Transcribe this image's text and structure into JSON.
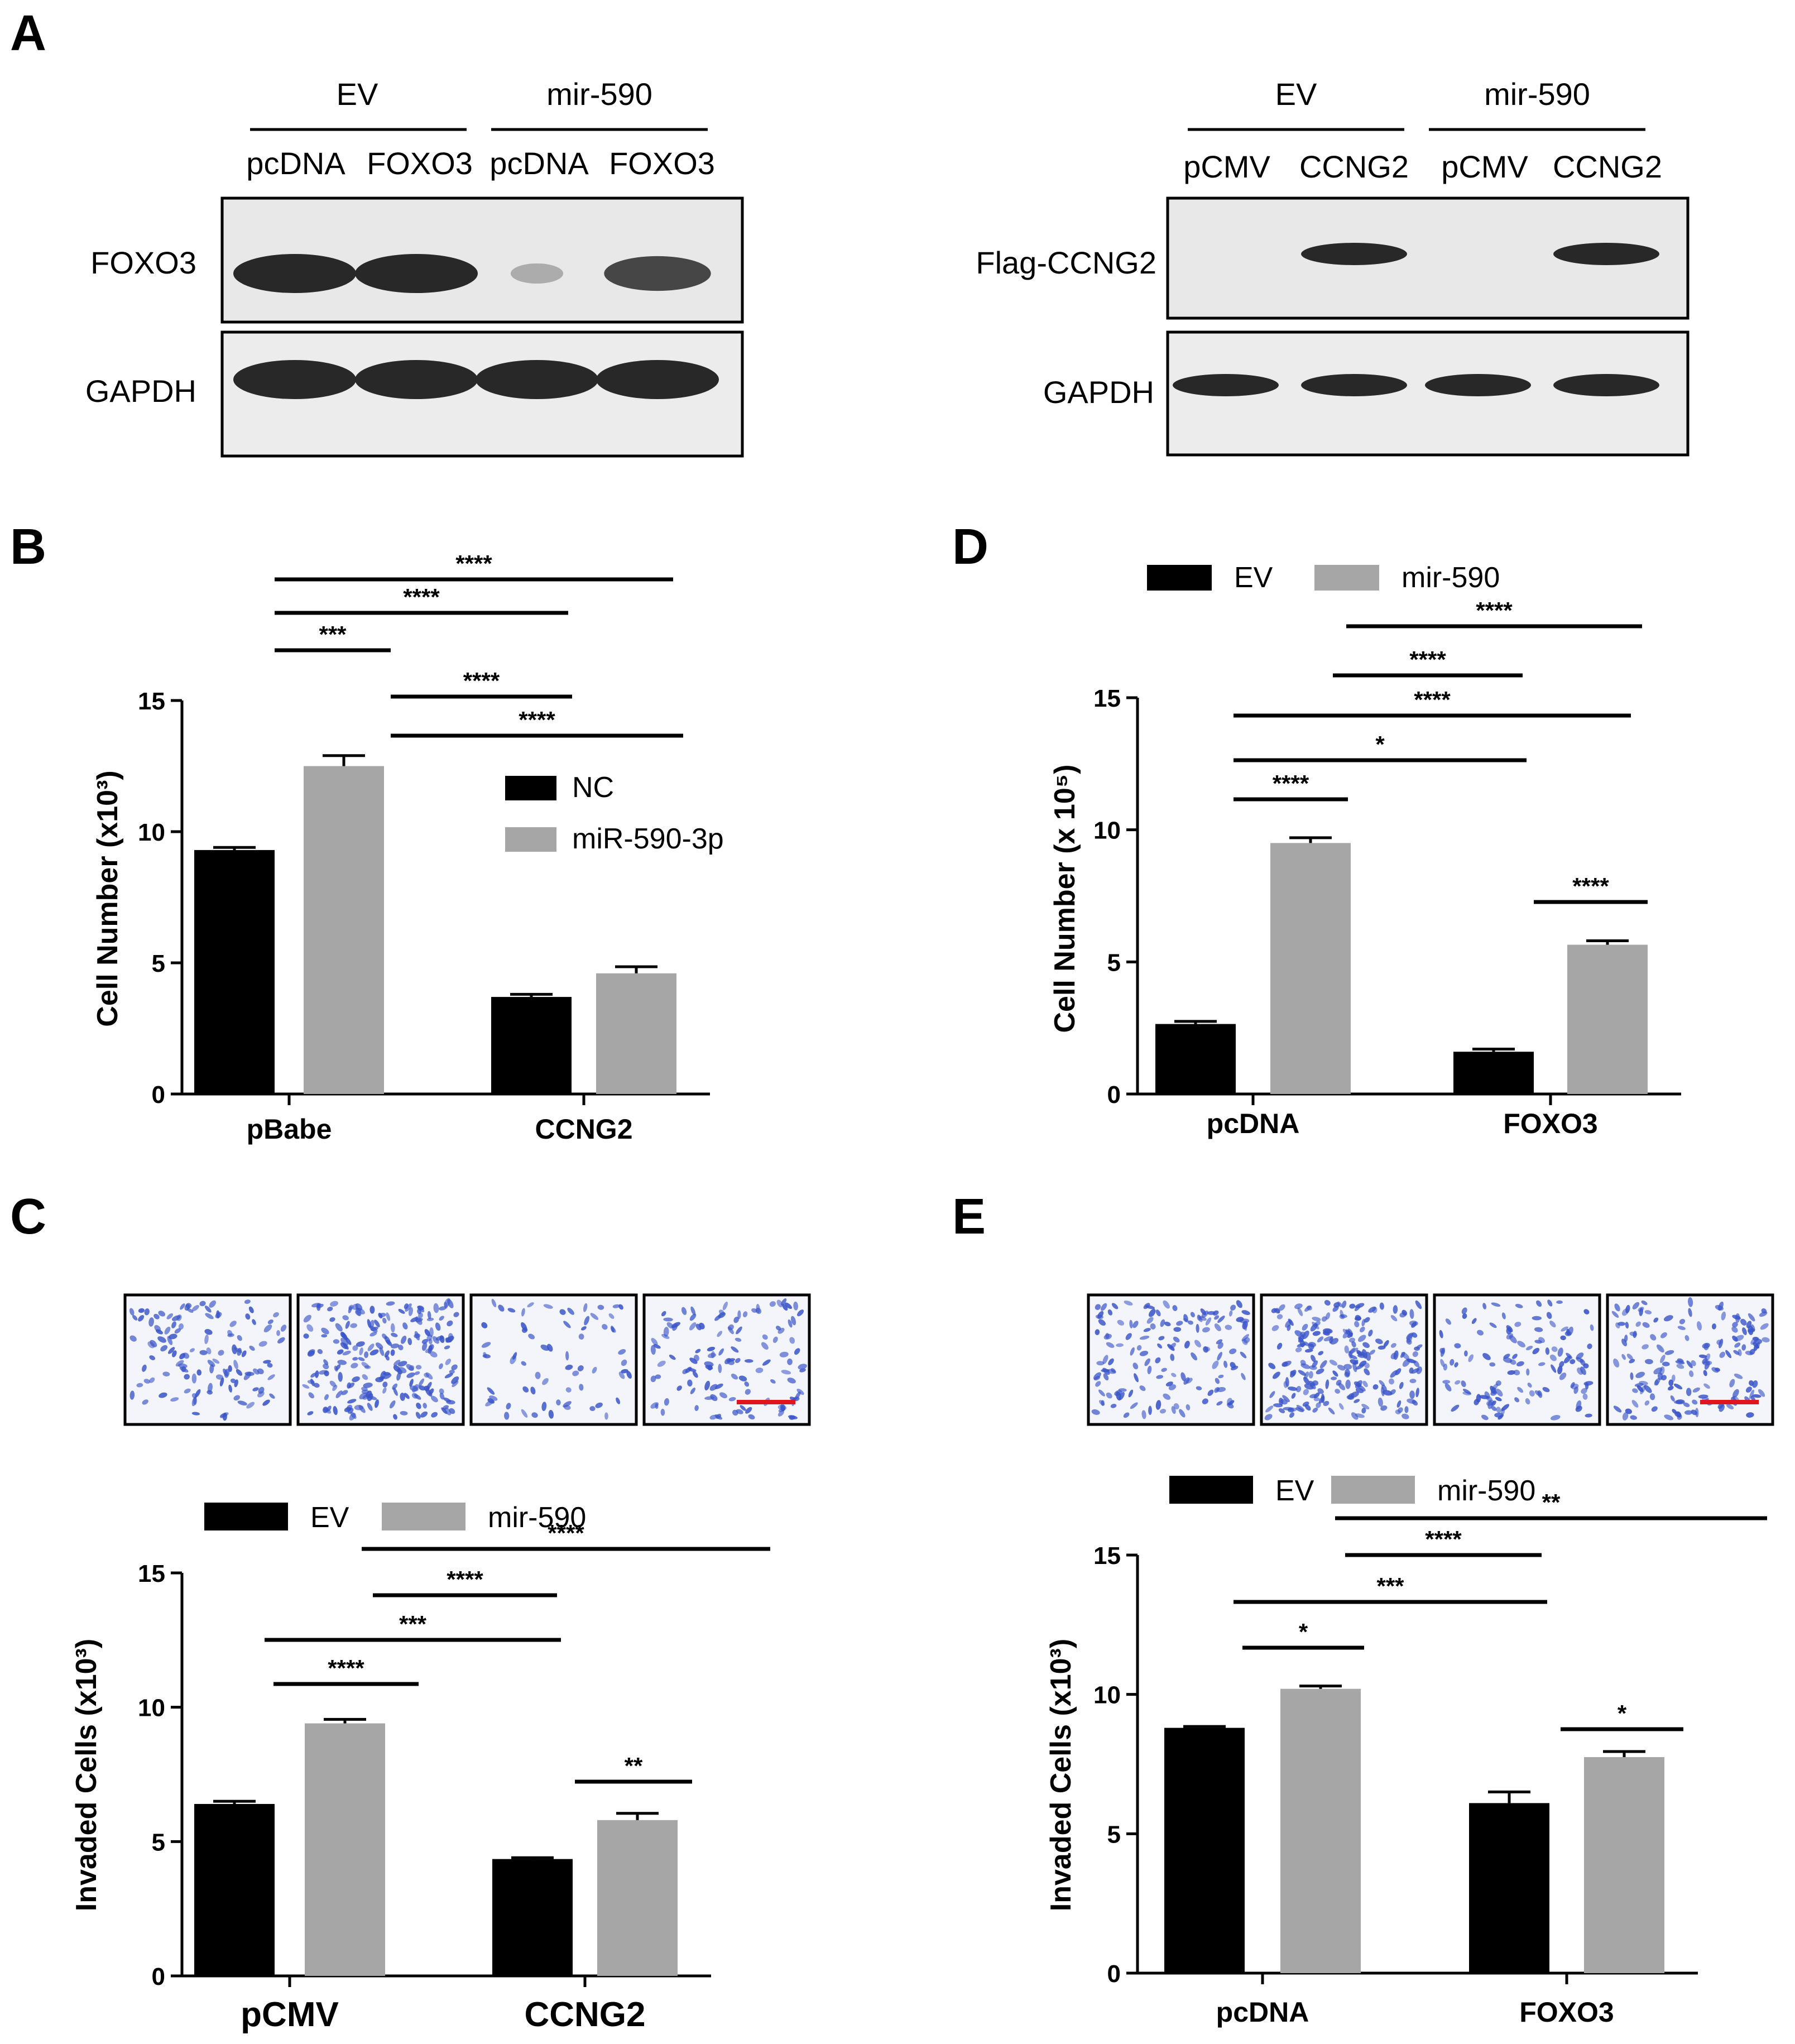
{
  "panel_labels": [
    "A",
    "B",
    "C",
    "D",
    "E"
  ],
  "blot_left": {
    "group_labels": [
      "EV",
      "mir-590"
    ],
    "lane_labels": [
      "pcDNA",
      "FOXO3",
      "pcDNA",
      "FOXO3"
    ],
    "rows": [
      {
        "label": "FOXO3",
        "band_intensity": [
          1.0,
          1.0,
          0.12,
          0.8
        ]
      },
      {
        "label": "GAPDH",
        "band_intensity": [
          1.0,
          1.0,
          1.0,
          1.0
        ]
      }
    ]
  },
  "blot_right": {
    "group_labels": [
      "EV",
      "mir-590"
    ],
    "lane_labels": [
      "pCMV",
      "CCNG2",
      "pCMV",
      "CCNG2"
    ],
    "rows": [
      {
        "label": "Flag-CCNG2",
        "band_intensity": [
          0.0,
          1.0,
          0.0,
          1.0
        ]
      },
      {
        "label": "GAPDH",
        "band_intensity": [
          1.0,
          1.0,
          1.0,
          1.0
        ]
      }
    ]
  },
  "colors": {
    "black_series": "#000000",
    "gray_series": "#a6a6a6",
    "stain": "#3a55c8",
    "scale_bar": "#e0161e"
  },
  "chart_data": [
    {
      "id": "B",
      "type": "bar",
      "ylabel": "Cell Number (x10³)",
      "ylim": [
        0,
        15
      ],
      "yticks": [
        0,
        5,
        10,
        15
      ],
      "categories": [
        "pBabe",
        "CCNG2"
      ],
      "series": [
        {
          "name": "NC",
          "values": [
            9.3,
            3.7
          ],
          "errors": [
            0.1,
            0.1
          ]
        },
        {
          "name": "miR-590-3p",
          "values": [
            12.5,
            4.6
          ],
          "errors": [
            0.4,
            0.25
          ]
        }
      ],
      "legend": {
        "placement": "right"
      },
      "significance": [
        {
          "label": "****",
          "from": [
            0,
            0
          ],
          "to": [
            1,
            1
          ]
        },
        {
          "label": "****",
          "from": [
            0,
            0
          ],
          "to": [
            1,
            0
          ]
        },
        {
          "label": "***",
          "from": [
            0,
            0
          ],
          "to": [
            0,
            1
          ]
        },
        {
          "label": "****",
          "from": [
            0,
            1
          ],
          "to": [
            1,
            0
          ]
        },
        {
          "label": "****",
          "from": [
            0,
            1
          ],
          "to": [
            1,
            1
          ]
        }
      ]
    },
    {
      "id": "D",
      "type": "bar",
      "ylabel": "Cell Number (x 10⁵)",
      "ylim": [
        0,
        15
      ],
      "yticks": [
        0,
        5,
        10,
        15
      ],
      "categories": [
        "pcDNA",
        "FOXO3"
      ],
      "series": [
        {
          "name": "EV",
          "values": [
            2.65,
            1.6
          ],
          "errors": [
            0.1,
            0.1
          ]
        },
        {
          "name": "mir-590",
          "values": [
            9.5,
            5.65
          ],
          "errors": [
            0.2,
            0.15
          ]
        }
      ],
      "legend": {
        "placement": "top"
      },
      "significance": [
        {
          "label": "****",
          "from": [
            0,
            1
          ],
          "to": [
            1,
            1
          ]
        },
        {
          "label": "****",
          "from": [
            0,
            1
          ],
          "to": [
            1,
            0
          ]
        },
        {
          "label": "****",
          "from": [
            0,
            0
          ],
          "to": [
            1,
            1
          ]
        },
        {
          "label": "*",
          "from": [
            0,
            0
          ],
          "to": [
            1,
            0
          ]
        },
        {
          "label": "****",
          "from": [
            0,
            0
          ],
          "to": [
            0,
            1
          ]
        },
        {
          "label": "****",
          "from": [
            1,
            0
          ],
          "to": [
            1,
            1
          ]
        }
      ]
    },
    {
      "id": "C",
      "type": "bar",
      "ylabel": "Invaded Cells (x10³)",
      "ylim": [
        0,
        15
      ],
      "yticks": [
        0,
        5,
        10,
        15
      ],
      "categories": [
        "pCMV",
        "CCNG2"
      ],
      "series": [
        {
          "name": "EV",
          "values": [
            6.4,
            4.35
          ],
          "errors": [
            0.1,
            0.05
          ]
        },
        {
          "name": "mir-590",
          "values": [
            9.4,
            5.8
          ],
          "errors": [
            0.15,
            0.25
          ]
        }
      ],
      "legend": {
        "placement": "top"
      },
      "significance": [
        {
          "label": "****",
          "from": [
            0,
            1
          ],
          "to": [
            1,
            1
          ]
        },
        {
          "label": "****",
          "from": [
            0,
            1
          ],
          "to": [
            1,
            0
          ]
        },
        {
          "label": "***",
          "from": [
            0,
            0
          ],
          "to": [
            1,
            0
          ]
        },
        {
          "label": "****",
          "from": [
            0,
            0
          ],
          "to": [
            0,
            1
          ]
        },
        {
          "label": "**",
          "from": [
            1,
            0
          ],
          "to": [
            1,
            1
          ]
        }
      ]
    },
    {
      "id": "E",
      "type": "bar",
      "ylabel": "Invaded Cells (x10³)",
      "ylim": [
        0,
        15
      ],
      "yticks": [
        0,
        5,
        10,
        15
      ],
      "categories": [
        "pcDNA",
        "FOXO3"
      ],
      "series": [
        {
          "name": "EV",
          "values": [
            8.8,
            6.1
          ],
          "errors": [
            0.05,
            0.4
          ]
        },
        {
          "name": "mir-590",
          "values": [
            10.2,
            7.75
          ],
          "errors": [
            0.1,
            0.2
          ]
        }
      ],
      "legend": {
        "placement": "top"
      },
      "significance": [
        {
          "label": "**",
          "from": [
            0,
            1
          ],
          "to": [
            1,
            1
          ]
        },
        {
          "label": "****",
          "from": [
            0,
            1
          ],
          "to": [
            1,
            0
          ]
        },
        {
          "label": "***",
          "from": [
            0,
            0
          ],
          "to": [
            1,
            0
          ]
        },
        {
          "label": "*",
          "from": [
            0,
            0
          ],
          "to": [
            0,
            1
          ]
        },
        {
          "label": "*",
          "from": [
            1,
            0
          ],
          "to": [
            1,
            1
          ]
        }
      ]
    }
  ],
  "micrographs": [
    {
      "panel": "C",
      "density": [
        0.55,
        1.0,
        0.3,
        0.55
      ]
    },
    {
      "panel": "E",
      "density": [
        0.65,
        1.0,
        0.55,
        0.7
      ]
    }
  ]
}
